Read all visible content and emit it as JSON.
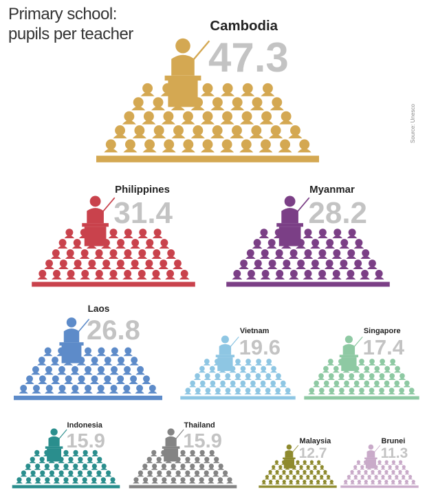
{
  "title": {
    "line1": "Primary school:",
    "line2": "pupils per teacher"
  },
  "source": "Source: Unesco",
  "chart_data": {
    "type": "pictogram",
    "title": "Primary school: pupils per teacher",
    "categories": [
      "Cambodia",
      "Philippines",
      "Myanmar",
      "Laos",
      "Vietnam",
      "Singapore",
      "Indonesia",
      "Thailand",
      "Malaysia",
      "Brunei"
    ],
    "values": [
      47.3,
      31.4,
      28.2,
      26.8,
      19.6,
      17.4,
      15.9,
      15.9,
      12.7,
      11.3
    ],
    "labels": [
      "47.3",
      "31.4",
      "28.2",
      "26.8",
      "19.6",
      "17.4",
      "15.9",
      "15.9",
      "12.7",
      "11.3"
    ],
    "colors": [
      "#d4a852",
      "#c9424c",
      "#7b3f86",
      "#5d8bc9",
      "#8ec6e3",
      "#8ec9a3",
      "#2a8e8d",
      "#848484",
      "#8e8a2e",
      "#c9aac9"
    ],
    "source": "Source: Unesco"
  }
}
